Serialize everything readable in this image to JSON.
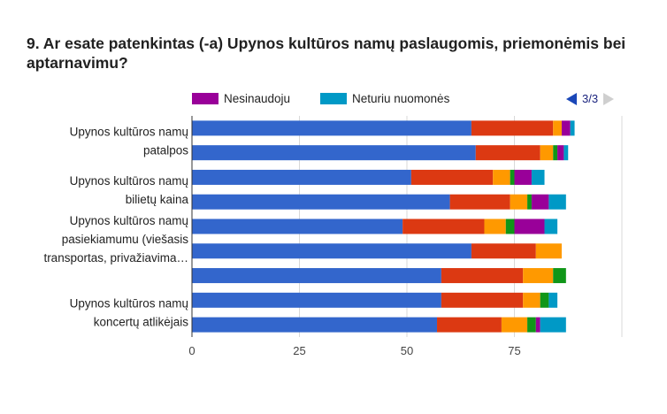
{
  "question_title": "9. Ar esate patenkintas (-a) Upynos kultūros namų paslaugomis, priemonėmis bei aptarnavimu?",
  "pager": {
    "label": "3/3"
  },
  "chart_data": {
    "type": "bar",
    "orientation": "horizontal",
    "stacked": true,
    "title": "9. Ar esate patenkintas (-a) Upynos kultūros namų paslaugomis, priemonėmis bei aptarnavimu?",
    "xlim": [
      0,
      100
    ],
    "x_ticks": [
      0,
      25,
      50,
      75
    ],
    "legend_position": "top",
    "visible_legend": [
      {
        "name": "Nesinaudoju",
        "color": "#990099"
      },
      {
        "name": "Neturiu nuomonės",
        "color": "#0099c6"
      }
    ],
    "series_colors": [
      "#3366cc",
      "#dc3912",
      "#ff9900",
      "#109618",
      "#990099",
      "#0099c6"
    ],
    "category_labels": [
      {
        "lines": [
          "Upynos kultūros namų",
          "patalpos"
        ],
        "row": 0
      },
      {
        "lines": [
          "Upynos kultūros namų",
          "bilietų kaina"
        ],
        "row": 2
      },
      {
        "lines": [
          "Upynos kultūros namų",
          "pasiekiamumu (viešasis",
          "transportas, privažiavima…"
        ],
        "row": 4
      },
      {
        "lines": [
          "Upynos kultūros namų",
          "koncertų atlikėjais"
        ],
        "row": 7
      }
    ],
    "rows": [
      [
        65,
        19,
        2,
        0,
        2,
        1
      ],
      [
        66,
        15,
        3,
        1,
        1.5,
        1
      ],
      [
        51,
        19,
        4,
        1,
        4,
        3
      ],
      [
        60,
        14,
        4,
        1,
        4,
        4
      ],
      [
        49,
        19,
        5,
        2,
        7,
        3
      ],
      [
        65,
        15,
        6,
        0,
        0,
        0
      ],
      [
        58,
        19,
        7,
        3,
        0,
        0
      ],
      [
        58,
        19,
        4,
        2,
        0,
        2
      ],
      [
        57,
        15,
        6,
        2,
        1,
        6
      ]
    ]
  }
}
